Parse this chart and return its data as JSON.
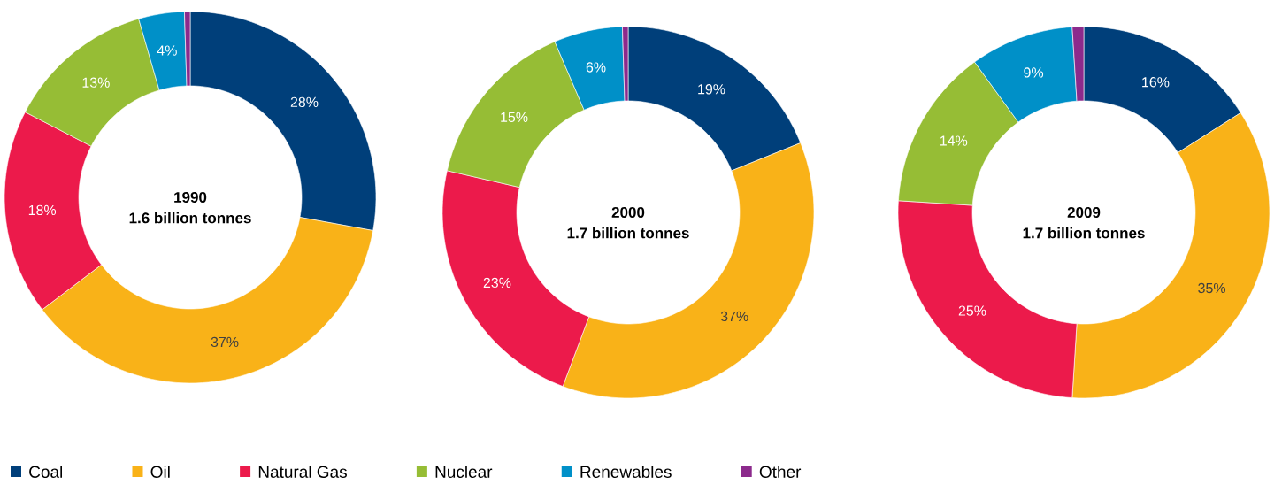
{
  "chart_data": [
    {
      "type": "donut",
      "title": "1990",
      "subtitle": "1.6 billion tonnes",
      "categories": [
        "Coal",
        "Oil",
        "Natural Gas",
        "Nuclear",
        "Renewables",
        "Other"
      ],
      "values": [
        28,
        37,
        18,
        13,
        4,
        0.5
      ],
      "value_labels": [
        "28%",
        "37%",
        "18%",
        "13%",
        "4%",
        null
      ],
      "colors": [
        "#003f7a",
        "#f9b218",
        "#ec1a4b",
        "#96bd35",
        "#0090c8",
        "#8c2a8c"
      ],
      "legend": "bottom"
    },
    {
      "type": "donut",
      "title": "2000",
      "subtitle": "1.7 billion tonnes",
      "categories": [
        null,
        null,
        null,
        null,
        null,
        null
      ],
      "values": [
        19,
        37,
        23,
        15,
        6,
        0.5
      ],
      "value_labels": [
        "19%",
        "37%",
        "23%",
        "15%",
        "6%",
        null
      ],
      "colors": [
        "#003f7a",
        "#f9b218",
        "#ec1a4b",
        "#96bd35",
        "#0090c8",
        "#8c2a8c"
      ]
    },
    {
      "type": "donut",
      "title": "2009",
      "subtitle": "1.7 billion tonnes",
      "categories": [
        null,
        null,
        null,
        null,
        null,
        null
      ],
      "values": [
        16,
        35,
        25,
        14,
        9,
        1
      ],
      "value_labels": [
        "16%",
        "35%",
        "25%",
        "14%",
        "9%",
        null
      ],
      "colors": [
        "#003f7a",
        "#f9b218",
        "#ec1a4b",
        "#96bd35",
        "#0090c8",
        "#8c2a8c"
      ]
    }
  ]
}
